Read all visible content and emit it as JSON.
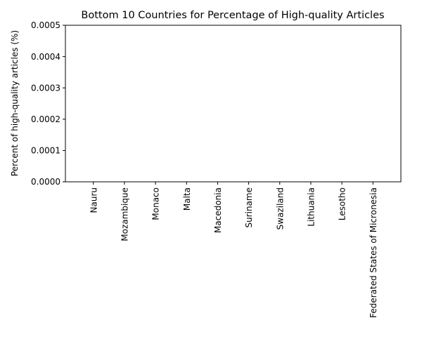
{
  "chart_data": {
    "type": "bar",
    "title": "Bottom 10 Countries for Percentage of High-quality Articles",
    "xlabel": "",
    "ylabel": "Percent of high-quality articles (%)",
    "categories": [
      "Nauru",
      "Mozambique",
      "Monaco",
      "Malta",
      "Macedonia",
      "Suriname",
      "Swaziland",
      "Lithuania",
      "Lesotho",
      "Federated States of Micronesia"
    ],
    "values": [
      0,
      0,
      0,
      0,
      0,
      0,
      0,
      0,
      0,
      0
    ],
    "ylim": [
      0,
      0.0005
    ],
    "yticks": [
      "0.0000",
      "0.0001",
      "0.0002",
      "0.0003",
      "0.0004",
      "0.0005"
    ],
    "grid": false,
    "colors": {
      "bar": "#1f77b4",
      "axis": "#000000",
      "text": "#000000"
    }
  }
}
